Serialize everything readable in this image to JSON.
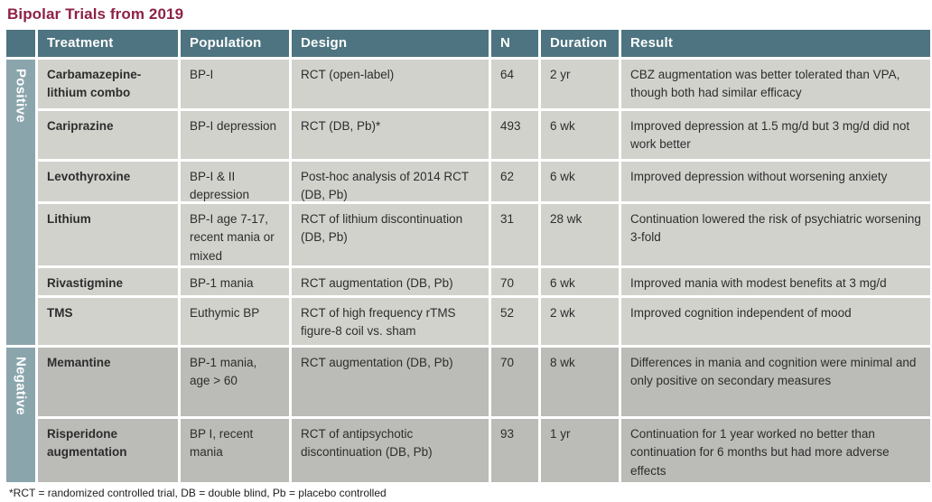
{
  "title": "Bipolar Trials from 2019",
  "colors": {
    "title_text": "#8e2247",
    "header_bg": "#4d7480",
    "header_text": "#ffffff",
    "sidebar_bg": "#8ba5ad",
    "positive_row_bg": "#d2d2cd",
    "negative_row_bg": "#bbbcb7",
    "body_text": "#2d2d2d",
    "grid_gap": "#ffffff"
  },
  "table": {
    "headers": {
      "treatment": "Treatment",
      "population": "Population",
      "design": "Design",
      "n": "N",
      "duration": "Duration",
      "result": "Result"
    },
    "sections": {
      "positive": "Positive",
      "negative": "Negative"
    },
    "rows": [
      {
        "section": "Positive",
        "treatment": "Carbamazepine-lithium combo",
        "population": "BP-I",
        "design": "RCT (open-label)",
        "n": "64",
        "duration": "2 yr",
        "result": "CBZ augmentation was better tolerated than VPA, though both had similar efficacy"
      },
      {
        "section": "Positive",
        "treatment": "Cariprazine",
        "population": "BP-I depression",
        "design": "RCT (DB, Pb)*",
        "n": "493",
        "duration": "6 wk",
        "result": "Improved depression at 1.5 mg/d but 3 mg/d did not work better"
      },
      {
        "section": "Positive",
        "treatment": "Levothyroxine",
        "population": "BP-I & II depression",
        "design": "Post-hoc analysis of 2014 RCT (DB, Pb)",
        "n": "62",
        "duration": "6 wk",
        "result": "Improved depression without worsening anxiety"
      },
      {
        "section": "Positive",
        "treatment": "Lithium",
        "population": "BP-I age 7-17, recent mania or mixed",
        "design": "RCT of lithium discontinuation (DB, Pb)",
        "n": "31",
        "duration": "28 wk",
        "result": "Continuation lowered the risk of psychiatric worsening 3-fold"
      },
      {
        "section": "Positive",
        "treatment": "Rivastigmine",
        "population": "BP-1 mania",
        "design": "RCT augmentation (DB, Pb)",
        "n": "70",
        "duration": "6 wk",
        "result": "Improved mania with modest benefits at 3 mg/d"
      },
      {
        "section": "Positive",
        "treatment": "TMS",
        "population": "Euthymic BP",
        "design": "RCT of high frequency rTMS figure-8 coil vs. sham",
        "n": "52",
        "duration": "2 wk",
        "result": "Improved cognition independent of mood"
      },
      {
        "section": "Negative",
        "treatment": "Memantine",
        "population": "BP-1 mania, age > 60",
        "design": "RCT  augmentation (DB, Pb)",
        "n": "70",
        "duration": "8 wk",
        "result": "Differences in mania and cognition were minimal and only positive on secondary measures"
      },
      {
        "section": "Negative",
        "treatment": "Risperidone augmentation",
        "population": "BP I, recent mania",
        "design": "RCT of antipsychotic discontinuation (DB, Pb)",
        "n": "93",
        "duration": "1 yr",
        "result": "Continuation for 1 year worked no better than continuation for 6 months but had more adverse effects"
      }
    ]
  },
  "footnote": "*RCT = randomized controlled trial, DB = double blind, Pb = placebo controlled"
}
